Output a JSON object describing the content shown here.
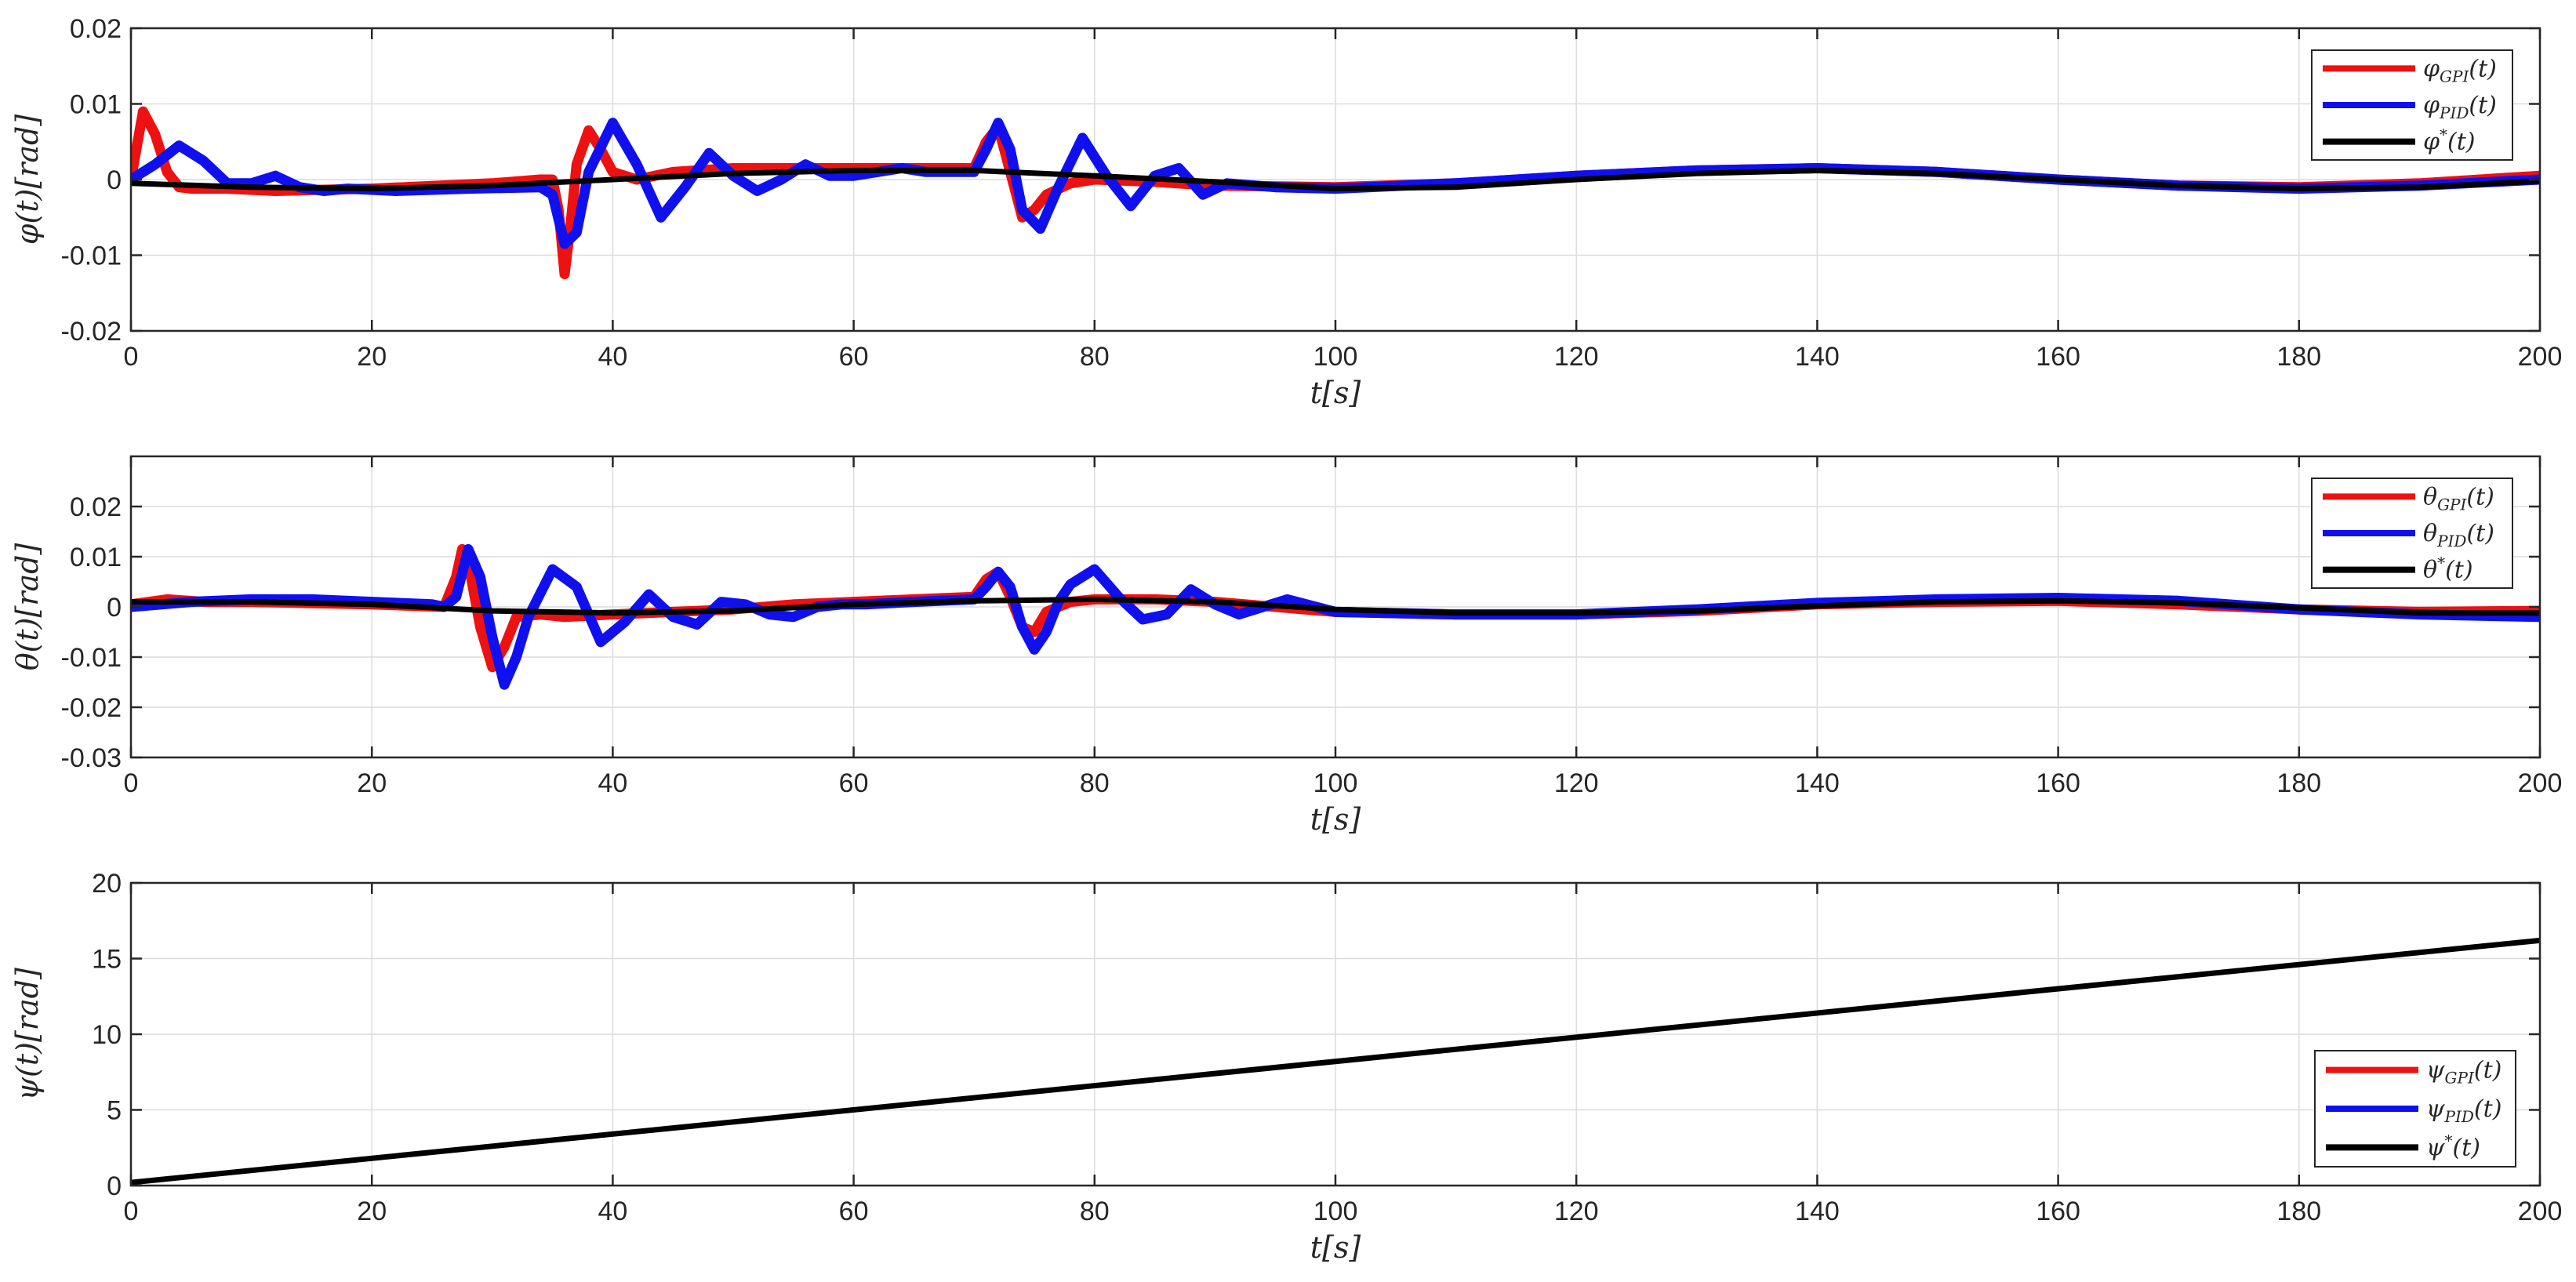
{
  "chart_data": [
    {
      "type": "line",
      "xlabel": "t[s]",
      "ylabel": "φ(t)[rad]",
      "xlim": [
        0,
        200
      ],
      "ylim": [
        -0.02,
        0.02
      ],
      "xticks": [
        0,
        20,
        40,
        60,
        80,
        100,
        120,
        140,
        160,
        180,
        200
      ],
      "xtick_labels": [
        "0",
        "20",
        "40",
        "60",
        "80",
        "100",
        "120",
        "140",
        "160",
        "180",
        "200"
      ],
      "yticks": [
        -0.02,
        -0.01,
        0,
        0.01,
        0.02
      ],
      "ytick_labels": [
        "-0.02",
        "-0.01",
        "0",
        "0.01",
        "0.02"
      ],
      "grid": true,
      "legend_position": "top-right",
      "series": [
        {
          "name": "φGPI(t)",
          "sym": "φ",
          "sub": "GPI",
          "sup": "",
          "color": "#ee1111",
          "style": "thick",
          "x": [
            0,
            1,
            2,
            3,
            4,
            5,
            8,
            12,
            20,
            30,
            34,
            35,
            35.5,
            36,
            36.5,
            37,
            38,
            39,
            40,
            42,
            45,
            50,
            55,
            60,
            65,
            70,
            71,
            72,
            73,
            74,
            75,
            76,
            78,
            80,
            85,
            90,
            100,
            110,
            120,
            130,
            140,
            150,
            160,
            170,
            180,
            190,
            200
          ],
          "y": [
            0,
            0.009,
            0.006,
            0.001,
            -0.001,
            -0.0012,
            -0.0012,
            -0.0015,
            -0.0012,
            -0.0005,
            0,
            0,
            -0.004,
            -0.0125,
            -0.006,
            0.002,
            0.0065,
            0.004,
            0.001,
            0,
            0.001,
            0.0015,
            0.0015,
            0.0015,
            0.0015,
            0.0015,
            0.005,
            0.007,
            0.001,
            -0.005,
            -0.004,
            -0.002,
            -0.0005,
            0,
            -0.0003,
            -0.0008,
            -0.001,
            -0.0005,
            0.0005,
            0.0012,
            0.0015,
            0.001,
            0,
            -0.0008,
            -0.001,
            -0.0005,
            0.0005
          ]
        },
        {
          "name": "φPID(t)",
          "sym": "φ",
          "sub": "PID",
          "sup": "",
          "color": "#1010ee",
          "style": "thick",
          "x": [
            0,
            2,
            4,
            6,
            8,
            10,
            12,
            14,
            16,
            18,
            22,
            28,
            34,
            35,
            36,
            37,
            38,
            40,
            42,
            44,
            46,
            48,
            50,
            52,
            54,
            56,
            58,
            60,
            62,
            64,
            66,
            70,
            71,
            72,
            73,
            74,
            75.5,
            77,
            79,
            81,
            83,
            85,
            87,
            89,
            91,
            95,
            100,
            110,
            120,
            130,
            140,
            150,
            160,
            170,
            180,
            190,
            200
          ],
          "y": [
            0,
            0.002,
            0.0045,
            0.0025,
            -0.0005,
            -0.0005,
            0.0005,
            -0.001,
            -0.0015,
            -0.0012,
            -0.0015,
            -0.0012,
            -0.001,
            -0.002,
            -0.0085,
            -0.007,
            0.001,
            0.0075,
            0.002,
            -0.005,
            -0.001,
            0.0035,
            0.0005,
            -0.0015,
            0,
            0.002,
            0.0005,
            0.0005,
            0.001,
            0.0015,
            0.001,
            0.001,
            0.004,
            0.0075,
            0.004,
            -0.004,
            -0.0065,
            -0.001,
            0.0055,
            0.0005,
            -0.0035,
            0.0005,
            0.0015,
            -0.002,
            -0.0005,
            -0.001,
            -0.0012,
            -0.0005,
            0.0005,
            0.0012,
            0.0015,
            0.001,
            0,
            -0.0008,
            -0.0012,
            -0.0008,
            0
          ]
        },
        {
          "name": "φ*(t)",
          "sym": "φ",
          "sub": "",
          "sup": "*",
          "color": "#000000",
          "style": "medium",
          "x": [
            0,
            10,
            20,
            30,
            40,
            50,
            60,
            70,
            80,
            90,
            100,
            110,
            120,
            130,
            140,
            150,
            160,
            170,
            180,
            190,
            200
          ],
          "y": [
            -0.0005,
            -0.001,
            -0.0012,
            -0.0008,
            0,
            0.0008,
            0.0012,
            0.0012,
            0.0005,
            -0.0003,
            -0.0012,
            -0.001,
            0,
            0.0008,
            0.0012,
            0.0008,
            0,
            -0.0008,
            -0.0012,
            -0.001,
            -0.0002
          ]
        }
      ]
    },
    {
      "type": "line",
      "xlabel": "t[s]",
      "ylabel": "θ(t)[rad]",
      "xlim": [
        0,
        200
      ],
      "ylim": [
        -0.03,
        0.03
      ],
      "xticks": [
        0,
        20,
        40,
        60,
        80,
        100,
        120,
        140,
        160,
        180,
        200
      ],
      "xtick_labels": [
        "0",
        "20",
        "40",
        "60",
        "80",
        "100",
        "120",
        "140",
        "160",
        "180",
        "200"
      ],
      "yticks": [
        -0.03,
        -0.02,
        -0.01,
        0,
        0.01,
        0.02
      ],
      "ytick_labels": [
        "-0.03",
        "-0.02",
        "-0.01",
        "0",
        "0.01",
        "0.02"
      ],
      "grid": true,
      "legend_position": "top-right",
      "series": [
        {
          "name": "θGPI(t)",
          "sym": "θ",
          "sub": "GPI",
          "sup": "",
          "color": "#ee1111",
          "style": "thick",
          "x": [
            0,
            3,
            6,
            10,
            20,
            26,
            27,
            27.5,
            28,
            29,
            30,
            31,
            32,
            34,
            36,
            40,
            45,
            50,
            55,
            60,
            65,
            70,
            71,
            72,
            73,
            74,
            75,
            76,
            78,
            80,
            85,
            90,
            100,
            110,
            120,
            130,
            140,
            150,
            160,
            170,
            180,
            190,
            200
          ],
          "y": [
            0.0005,
            0.0015,
            0.001,
            0.001,
            0.0005,
            0,
            0.006,
            0.0115,
            0.009,
            -0.004,
            -0.012,
            -0.008,
            -0.002,
            -0.0015,
            -0.002,
            -0.0015,
            -0.001,
            -0.0005,
            0.0005,
            0.001,
            0.0015,
            0.002,
            0.0055,
            0.007,
            0.002,
            -0.004,
            -0.005,
            -0.001,
            0.001,
            0.0015,
            0.0015,
            0.001,
            -0.001,
            -0.0015,
            -0.0015,
            -0.0008,
            0.0005,
            0.001,
            0.0012,
            0.0005,
            -0.0005,
            -0.001,
            -0.0008
          ]
        },
        {
          "name": "θPID(t)",
          "sym": "θ",
          "sub": "PID",
          "sup": "",
          "color": "#1010ee",
          "style": "thick",
          "x": [
            0,
            5,
            10,
            15,
            20,
            25,
            26,
            27,
            28,
            29,
            30,
            31,
            32,
            33,
            35,
            37,
            39,
            41,
            43,
            45,
            47,
            49,
            51,
            53,
            55,
            57,
            59,
            61,
            65,
            70,
            71,
            72,
            73,
            74,
            75,
            76,
            77,
            78,
            80,
            82,
            84,
            86,
            88,
            90,
            92,
            96,
            100,
            110,
            120,
            130,
            140,
            150,
            160,
            170,
            180,
            190,
            200
          ],
          "y": [
            0,
            0.001,
            0.0015,
            0.0015,
            0.001,
            0.0005,
            0,
            0.002,
            0.0115,
            0.006,
            -0.006,
            -0.0155,
            -0.01,
            -0.002,
            0.0075,
            0.004,
            -0.007,
            -0.003,
            0.0025,
            -0.002,
            -0.0035,
            0.001,
            0.0005,
            -0.0015,
            -0.002,
            0,
            0.0005,
            0.0005,
            0.001,
            0.0015,
            0.004,
            0.007,
            0.004,
            -0.004,
            -0.0085,
            -0.005,
            0.001,
            0.0045,
            0.0075,
            0.002,
            -0.0025,
            -0.0015,
            0.0035,
            0.0005,
            -0.0015,
            0.0015,
            -0.001,
            -0.0015,
            -0.0015,
            -0.0005,
            0.0008,
            0.0015,
            0.0018,
            0.0012,
            -0.0005,
            -0.0015,
            -0.002
          ]
        },
        {
          "name": "θ*(t)",
          "sym": "θ",
          "sub": "",
          "sup": "*",
          "color": "#000000",
          "style": "medium",
          "x": [
            0,
            10,
            20,
            30,
            40,
            50,
            60,
            70,
            80,
            90,
            100,
            110,
            120,
            130,
            140,
            150,
            160,
            170,
            180,
            190,
            200
          ],
          "y": [
            0.001,
            0.001,
            0.0005,
            -0.0008,
            -0.0012,
            -0.0008,
            0.0005,
            0.0012,
            0.0015,
            0.001,
            -0.0005,
            -0.0012,
            -0.0012,
            -0.0008,
            0.0002,
            0.001,
            0.0012,
            0.0008,
            -0.0002,
            -0.0012,
            -0.0012
          ]
        }
      ]
    },
    {
      "type": "line",
      "xlabel": "t[s]",
      "ylabel": "ψ(t)[rad]",
      "xlim": [
        0,
        200
      ],
      "ylim": [
        0,
        20
      ],
      "xticks": [
        0,
        20,
        40,
        60,
        80,
        100,
        120,
        140,
        160,
        180,
        200
      ],
      "xtick_labels": [
        "0",
        "20",
        "40",
        "60",
        "80",
        "100",
        "120",
        "140",
        "160",
        "180",
        "200"
      ],
      "yticks": [
        0,
        5,
        10,
        15,
        20
      ],
      "ytick_labels": [
        "0",
        "5",
        "10",
        "15",
        "20"
      ],
      "grid": true,
      "legend_position": "bottom-right",
      "series": [
        {
          "name": "ψGPI(t)",
          "sym": "ψ",
          "sub": "GPI",
          "sup": "",
          "color": "#ee1111",
          "style": "thin",
          "x": [
            0,
            200
          ],
          "y": [
            0.2,
            16.2
          ]
        },
        {
          "name": "ψPID(t)",
          "sym": "ψ",
          "sub": "PID",
          "sup": "",
          "color": "#1010ee",
          "style": "thin",
          "x": [
            0,
            200
          ],
          "y": [
            0.2,
            16.2
          ]
        },
        {
          "name": "ψ*(t)",
          "sym": "ψ",
          "sub": "",
          "sup": "*",
          "color": "#000000",
          "style": "medium",
          "x": [
            0,
            200
          ],
          "y": [
            0.2,
            16.2
          ]
        }
      ]
    }
  ]
}
